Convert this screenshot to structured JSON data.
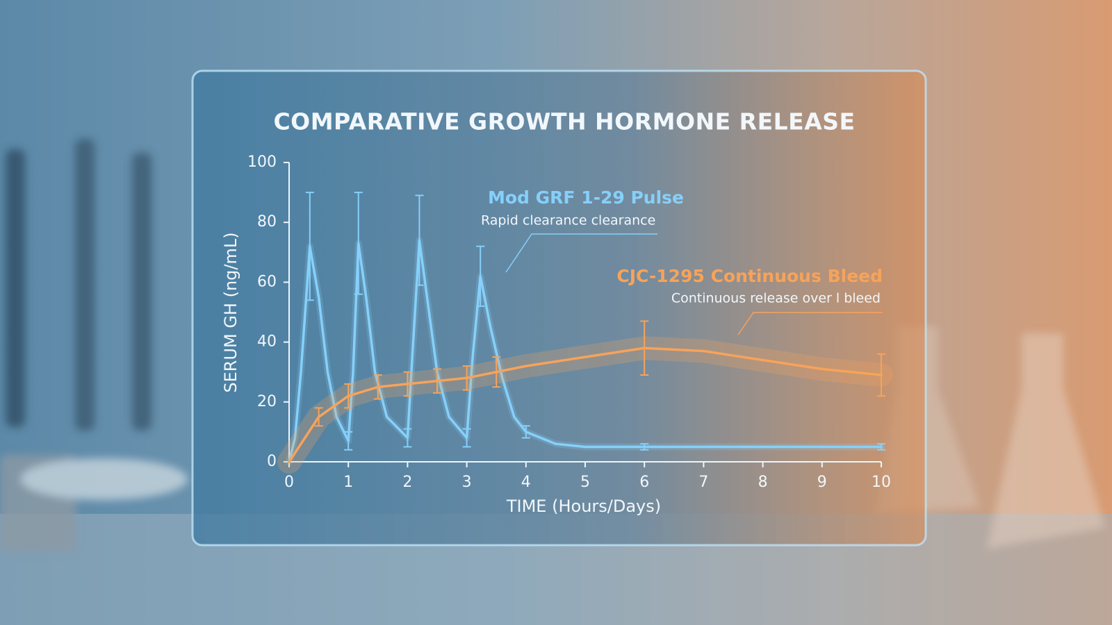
{
  "chart_data": {
    "type": "line",
    "title": "COMPARATIVE GROWTH HORMONE RELEASE",
    "xlabel": "TIME (Hours/Days)",
    "ylabel": "SERUM GH (ng/mL)",
    "xlim": [
      0,
      10
    ],
    "ylim": [
      0,
      100
    ],
    "xticks": [
      0,
      1,
      2,
      3,
      4,
      5,
      6,
      7,
      8,
      9,
      10
    ],
    "yticks": [
      0,
      20,
      40,
      60,
      80,
      100
    ],
    "series": [
      {
        "name": "Mod GRF 1-29 Pulse",
        "note": "Rapid clearance clearance",
        "color": "#86d0fa",
        "x": [
          0,
          0.1,
          0.2,
          0.35,
          0.5,
          0.65,
          0.8,
          1.0,
          1.08,
          1.17,
          1.3,
          1.45,
          1.65,
          2.0,
          2.08,
          2.2,
          2.35,
          2.5,
          2.7,
          3.0,
          3.1,
          3.23,
          3.4,
          3.6,
          3.8,
          4.0,
          4.5,
          5,
          6,
          7,
          8,
          9,
          10
        ],
        "values": [
          0,
          8,
          30,
          72,
          55,
          30,
          15,
          7,
          30,
          73,
          55,
          30,
          15,
          8,
          35,
          74,
          52,
          30,
          15,
          8,
          35,
          62,
          45,
          28,
          15,
          10,
          6,
          5,
          5,
          5,
          5,
          5,
          5
        ],
        "errors": [
          null,
          null,
          null,
          18,
          null,
          null,
          null,
          3,
          null,
          17,
          null,
          null,
          null,
          3,
          null,
          15,
          null,
          null,
          null,
          3,
          null,
          10,
          null,
          null,
          null,
          2,
          null,
          null,
          1,
          null,
          null,
          null,
          1
        ]
      },
      {
        "name": "CJC-1295 Continuous Bleed",
        "note": "Continuous release over l bleed",
        "color": "#f7a35a",
        "x": [
          0,
          0.5,
          1.0,
          1.5,
          2.0,
          2.5,
          3.0,
          3.5,
          4,
          5,
          6,
          7,
          8,
          9,
          10
        ],
        "values": [
          0,
          15,
          22,
          25,
          26,
          27,
          28,
          30,
          32,
          35,
          38,
          37,
          34,
          31,
          29
        ],
        "errors": [
          null,
          3,
          4,
          4,
          4,
          4,
          4,
          5,
          null,
          null,
          9,
          null,
          null,
          null,
          7
        ]
      }
    ]
  }
}
